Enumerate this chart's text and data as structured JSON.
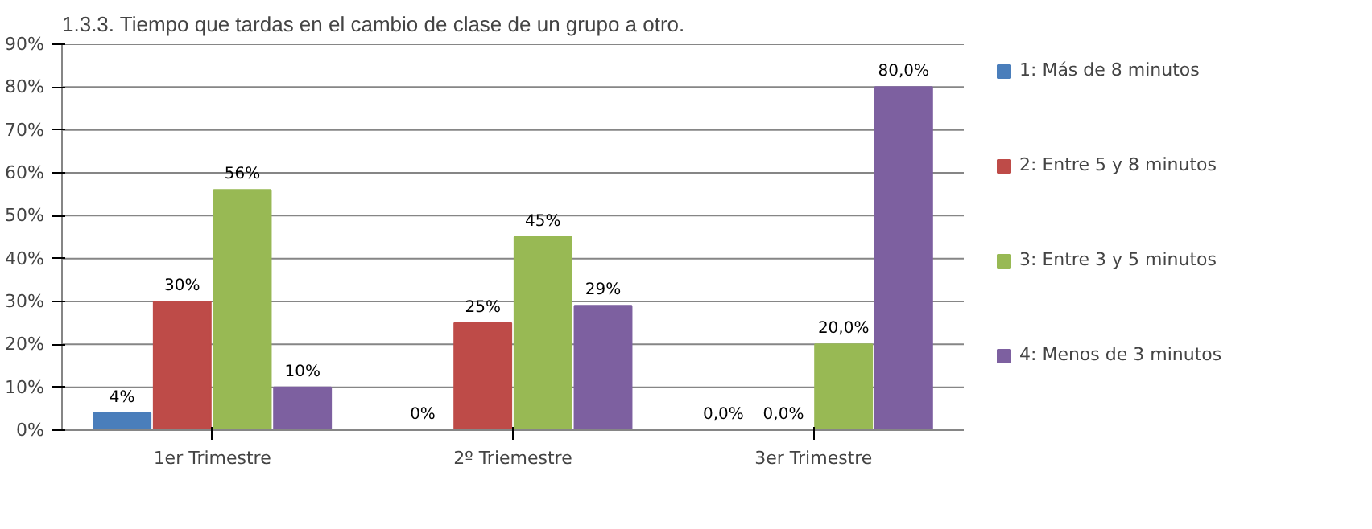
{
  "chart_data": {
    "type": "bar",
    "title": "1.3.3. Tiempo que tardas en el cambio de clase de un grupo a otro.",
    "categories": [
      "1er Trimestre",
      "2º Triemestre",
      "3er Trimestre"
    ],
    "series": [
      {
        "name": "1: Más de 8 minutos",
        "color": "#4a7ebb",
        "values": [
          4,
          0,
          0.0
        ],
        "value_labels": [
          "4%",
          "0%",
          "0,0%"
        ]
      },
      {
        "name": "2: Entre 5 y 8 minutos",
        "color": "#be4b48",
        "values": [
          30,
          25,
          0.0
        ],
        "value_labels": [
          "30%",
          "25%",
          "0,0%"
        ]
      },
      {
        "name": "3: Entre 3 y 5 minutos",
        "color": "#98b954",
        "values": [
          56,
          45,
          20.0
        ],
        "value_labels": [
          "56%",
          "45%",
          "20,0%"
        ]
      },
      {
        "name": "4: Menos de 3 minutos",
        "color": "#7d60a0",
        "values": [
          10,
          29,
          80.0
        ],
        "value_labels": [
          "10%",
          "29%",
          "80,0%"
        ]
      }
    ],
    "ylim": [
      0,
      90
    ],
    "yticks": [
      {
        "value": 0,
        "label": "0%"
      },
      {
        "value": 10,
        "label": "10%"
      },
      {
        "value": 20,
        "label": "20%"
      },
      {
        "value": 30,
        "label": "30%"
      },
      {
        "value": 40,
        "label": "40%"
      },
      {
        "value": 50,
        "label": "50%"
      },
      {
        "value": 60,
        "label": "60%"
      },
      {
        "value": 70,
        "label": "70%"
      },
      {
        "value": 80,
        "label": "80%"
      },
      {
        "value": 90,
        "label": "90%"
      }
    ],
    "grid": "y",
    "legend": "right"
  }
}
